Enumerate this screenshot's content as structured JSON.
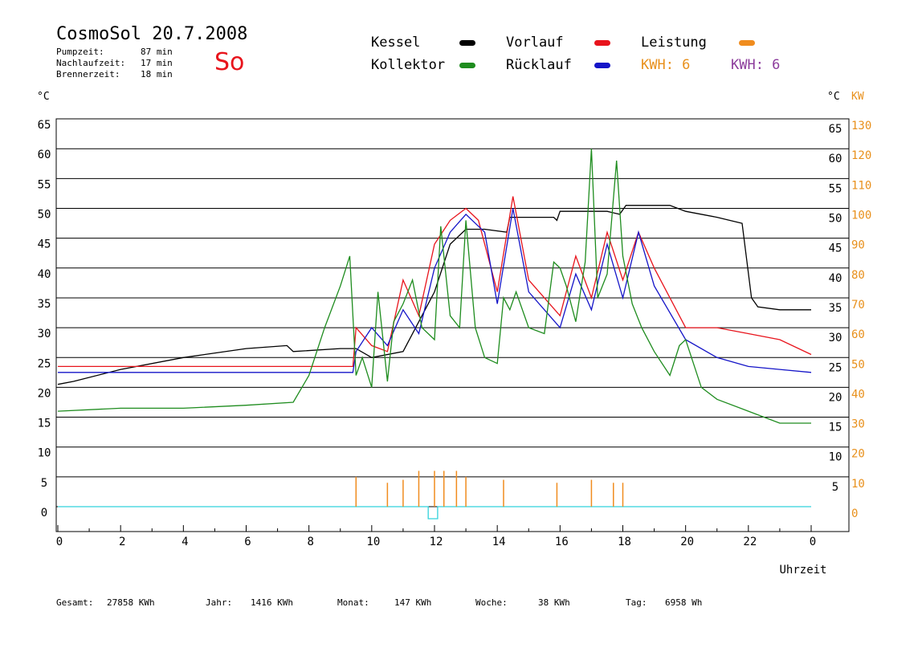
{
  "header": {
    "title": "CosmoSol 20.7.2008",
    "day_label": "So",
    "stats": [
      {
        "label": "Pumpzeit:",
        "value": "87 min"
      },
      {
        "label": "Nachlaufzeit:",
        "value": "17 min"
      },
      {
        "label": "Brennerzeit:",
        "value": "18 min"
      }
    ]
  },
  "legend": {
    "kessel": "Kessel",
    "kollektor": "Kollektor",
    "vorlauf": "Vorlauf",
    "ruecklauf": "Rücklauf",
    "leistung": "Leistung",
    "kwh_orange": "KWH: 6",
    "kwh_purple": "KWH: 6"
  },
  "colors": {
    "kessel": "#000000",
    "kollektor": "#1e8c1e",
    "vorlauf": "#e8141c",
    "ruecklauf": "#1414c8",
    "leistung": "#f08c1e",
    "kwh_purple": "#8c3c9c",
    "pump": "#32d2dc",
    "axis_right_kw": "#e8901c"
  },
  "footer": {
    "gesamt_label": "Gesamt:",
    "gesamt_value": "27858 KWh",
    "jahr_label": "Jahr:",
    "jahr_value": "1416 KWh",
    "monat_label": "Monat:",
    "monat_value": "147 KWh",
    "woche_label": "Woche:",
    "woche_value": "38 KWh",
    "tag_label": "Tag:",
    "tag_value": "6958 Wh"
  },
  "chart_data": {
    "type": "line",
    "xlabel": "Uhrzeit",
    "ylabel_left": "°C",
    "ylabel_right": "°C",
    "ylabel_right2": "KW",
    "xlim": [
      0,
      24
    ],
    "ylim": [
      -3,
      65
    ],
    "x_tick_labels": [
      "0",
      "2",
      "4",
      "6",
      "8",
      "10",
      "12",
      "14",
      "16",
      "18",
      "20",
      "22",
      "0"
    ],
    "y_left_ticks": [
      0,
      5,
      10,
      15,
      20,
      25,
      30,
      35,
      40,
      45,
      50,
      55,
      60,
      65
    ],
    "y_right_ticks": [
      5,
      10,
      15,
      20,
      25,
      30,
      35,
      40,
      45,
      50,
      55,
      60,
      65
    ],
    "y_right_kw_ticks": [
      0,
      10,
      20,
      30,
      40,
      50,
      60,
      70,
      80,
      90,
      100,
      110,
      120,
      130
    ],
    "grid": "horizontal",
    "series": [
      {
        "name": "Kessel",
        "color": "#000000",
        "x": [
          0,
          0.5,
          2,
          4,
          6,
          7.3,
          7.5,
          9,
          9.5,
          10,
          11,
          12,
          12.5,
          13,
          13.6,
          14.3,
          14.4,
          15.8,
          15.9,
          16,
          17.5,
          17.9,
          18.1,
          19.5,
          20,
          21,
          21.8,
          22.1,
          22.3,
          23,
          24
        ],
        "y": [
          20.5,
          21,
          23,
          25,
          26.5,
          27,
          26,
          26.5,
          26.5,
          25,
          26,
          36,
          44,
          46.5,
          46.5,
          46,
          48.5,
          48.5,
          48,
          49.5,
          49.5,
          49,
          50.5,
          50.5,
          49.5,
          48.5,
          47.5,
          35,
          33.5,
          33,
          33
        ]
      },
      {
        "name": "Vorlauf",
        "color": "#e8141c",
        "x": [
          0,
          9.4,
          9.5,
          10,
          10.5,
          11,
          11.5,
          12,
          12.5,
          13,
          13.4,
          14,
          14.5,
          15,
          16,
          16.5,
          17,
          17.5,
          18,
          18.5,
          19,
          20,
          21,
          22,
          23,
          24
        ],
        "y": [
          23.5,
          23.5,
          30,
          27,
          26,
          38,
          32,
          44,
          48,
          50,
          48,
          36,
          52,
          38,
          32,
          42,
          35,
          46,
          38,
          46,
          40,
          30,
          30,
          29,
          28,
          25.5
        ]
      },
      {
        "name": "Rücklauf",
        "color": "#1414c8",
        "x": [
          0,
          9.4,
          9.5,
          10,
          10.5,
          11,
          11.5,
          12,
          12.5,
          13,
          13.6,
          14,
          14.5,
          15,
          16,
          16.5,
          17,
          17.5,
          18,
          18.5,
          19,
          20,
          21,
          22,
          23,
          24
        ],
        "y": [
          22.5,
          22.5,
          26,
          30,
          27,
          33,
          29,
          40,
          46,
          49,
          46,
          34,
          50,
          36,
          30,
          39,
          33,
          44,
          35,
          46,
          37,
          28,
          25,
          23.5,
          23,
          22.5
        ]
      },
      {
        "name": "Kollektor",
        "color": "#1e8c1e",
        "x": [
          0,
          2,
          4,
          6,
          7.5,
          8,
          8.5,
          9,
          9.3,
          9.5,
          9.7,
          10,
          10.2,
          10.5,
          10.7,
          11,
          11.3,
          11.6,
          12,
          12.2,
          12.5,
          12.8,
          13,
          13.3,
          13.6,
          14,
          14.2,
          14.4,
          14.6,
          15,
          15.5,
          15.8,
          16,
          16.2,
          16.5,
          16.8,
          17,
          17.2,
          17.5,
          17.8,
          18,
          18.3,
          18.6,
          19,
          19.5,
          19.8,
          20,
          20.5,
          21,
          22,
          23,
          24
        ],
        "y": [
          16,
          16.5,
          16.5,
          17,
          17.5,
          22,
          30,
          37,
          42,
          22,
          25,
          20,
          36,
          21,
          31,
          34,
          38,
          30,
          28,
          47,
          32,
          30,
          48,
          30,
          25,
          24,
          35,
          33,
          36,
          30,
          29,
          41,
          40,
          37,
          31,
          41,
          60,
          35,
          39,
          58,
          42,
          34,
          30,
          26,
          22,
          27,
          28,
          20,
          18,
          16,
          14,
          14
        ]
      },
      {
        "name": "Leistung",
        "color": "#f08c1e",
        "x": [
          9.5,
          10.5,
          11,
          11.5,
          12,
          12.3,
          12.7,
          13,
          14.2,
          15.9,
          17,
          17.7,
          18
        ],
        "y": [
          10,
          8,
          9,
          12,
          12,
          12,
          12,
          10,
          9,
          8,
          9,
          8,
          8
        ]
      }
    ]
  }
}
